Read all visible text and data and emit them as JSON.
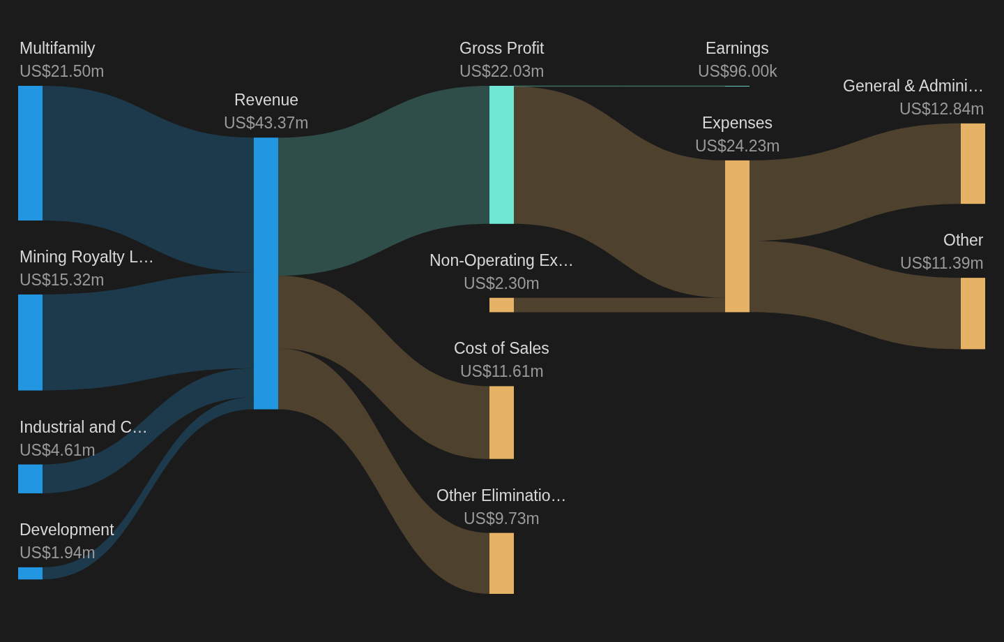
{
  "chart_data": {
    "type": "other",
    "categories": [
      "Multifamily",
      "Mining Royalty L…",
      "Industrial and C…",
      "Development",
      "Revenue",
      "Gross Profit",
      "Non-Operating Ex…",
      "Cost of Sales",
      "Other Eliminatio…",
      "Earnings",
      "Expenses",
      "General & Admini…",
      "Other"
    ],
    "values": [
      21500000,
      15320000,
      4610000,
      1940000,
      43370000,
      22030000,
      2300000,
      11610000,
      9730000,
      96000,
      24230000,
      12840000,
      11390000
    ],
    "value_labels": [
      "US$21.50m",
      "US$15.32m",
      "US$4.61m",
      "US$1.94m",
      "US$43.37m",
      "US$22.03m",
      "US$2.30m",
      "US$11.61m",
      "US$9.73m",
      "US$96.00k",
      "US$24.23m",
      "US$12.84m",
      "US$11.39m"
    ],
    "colors": [
      "#2396e1",
      "#2396e1",
      "#2396e1",
      "#2396e1",
      "#2396e1",
      "#70e6d4",
      "#e6b366",
      "#e6b366",
      "#e6b366",
      "#70e6d4",
      "#e6b366",
      "#e6b366",
      "#e6b366"
    ],
    "cells": [
      [
        null,
        null,
        null,
        null,
        true,
        null,
        null,
        null,
        null,
        null,
        null,
        null,
        null
      ],
      [
        null,
        null,
        null,
        null,
        true,
        null,
        null,
        null,
        null,
        null,
        null,
        null,
        null
      ],
      [
        null,
        null,
        null,
        null,
        true,
        null,
        null,
        null,
        null,
        null,
        null,
        null,
        null
      ],
      [
        null,
        null,
        null,
        null,
        true,
        null,
        null,
        null,
        null,
        null,
        null,
        null,
        null
      ],
      [
        null,
        null,
        null,
        null,
        null,
        true,
        null,
        true,
        true,
        null,
        null,
        null,
        null
      ],
      [
        null,
        null,
        null,
        null,
        null,
        null,
        null,
        null,
        null,
        true,
        true,
        null,
        null
      ],
      [
        null,
        null,
        null,
        null,
        null,
        null,
        null,
        null,
        null,
        null,
        true,
        null,
        null
      ],
      [
        null,
        null,
        null,
        null,
        null,
        null,
        null,
        null,
        null,
        null,
        null,
        null,
        null
      ],
      [
        null,
        null,
        null,
        null,
        null,
        null,
        null,
        null,
        null,
        null,
        null,
        null,
        null
      ],
      [
        null,
        null,
        null,
        null,
        null,
        null,
        null,
        null,
        null,
        null,
        null,
        null,
        null
      ],
      [
        null,
        null,
        null,
        null,
        null,
        null,
        null,
        null,
        null,
        null,
        null,
        true,
        true
      ],
      [
        null,
        null,
        null,
        null,
        null,
        null,
        null,
        null,
        null,
        null,
        null,
        null,
        null
      ],
      [
        null,
        null,
        null,
        null,
        null,
        null,
        null,
        null,
        null,
        null,
        null,
        null,
        null
      ]
    ]
  }
}
